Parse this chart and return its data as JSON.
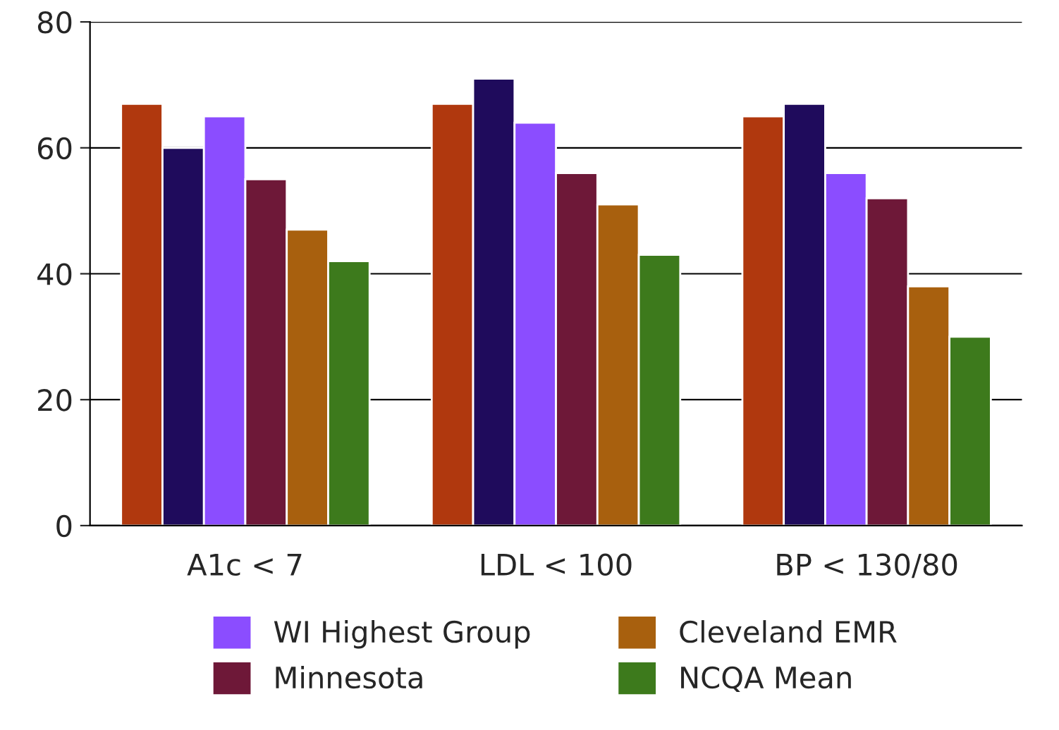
{
  "chart_data": {
    "type": "bar",
    "categories": [
      "A1c < 7",
      "LDL < 100",
      "BP < 130/80"
    ],
    "series": [
      {
        "color": "#b0380e",
        "values": [
          67,
          67,
          65
        ]
      },
      {
        "color": "#1f0b5c",
        "values": [
          60,
          71,
          67
        ]
      },
      {
        "name": "WI Highest Group",
        "color": "#8b4dff",
        "values": [
          65,
          64,
          56
        ]
      },
      {
        "name": "Minnesota",
        "color": "#6e1838",
        "values": [
          55,
          56,
          52
        ]
      },
      {
        "name": "Cleveland EMR",
        "color": "#a8600e",
        "values": [
          47,
          51,
          38
        ]
      },
      {
        "name": "NCQA Mean",
        "color": "#3d7a1c",
        "values": [
          42,
          43,
          30
        ]
      }
    ],
    "ylim": [
      0,
      80
    ],
    "yticks": [
      0,
      20,
      40,
      60,
      80
    ],
    "grid": "y",
    "legend": "bottom"
  }
}
